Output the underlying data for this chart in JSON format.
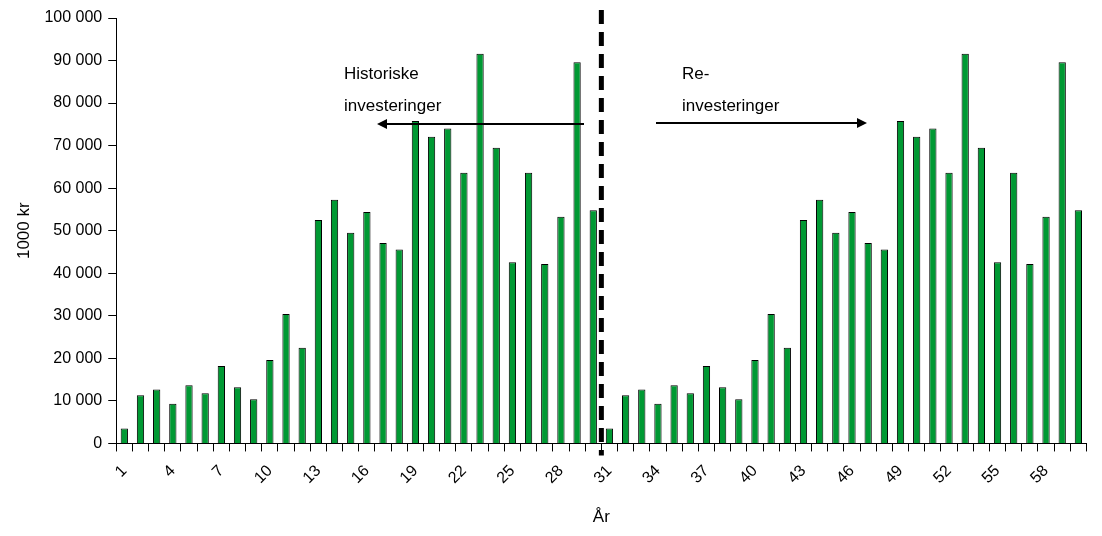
{
  "chart_data": {
    "type": "bar",
    "ylabel": "1000 kr",
    "xlabel": "År",
    "categories": [
      "1",
      null,
      null,
      "4",
      null,
      null,
      "7",
      null,
      null,
      "10",
      null,
      null,
      "13",
      null,
      null,
      "16",
      null,
      null,
      "19",
      null,
      null,
      "22",
      null,
      null,
      "25",
      null,
      null,
      "28",
      null,
      null,
      "31",
      null,
      null,
      "34",
      null,
      null,
      "37",
      null,
      null,
      "40",
      null,
      null,
      "43",
      null,
      null,
      "46",
      null,
      null,
      "49",
      null,
      null,
      "52",
      null,
      null,
      "55",
      null,
      null,
      "58",
      null,
      null
    ],
    "values": [
      3500,
      11300,
      12700,
      9300,
      13700,
      11800,
      18200,
      13200,
      10400,
      19600,
      30400,
      22500,
      52500,
      57300,
      49500,
      54400,
      47100,
      45600,
      75800,
      72100,
      74000,
      63600,
      91600,
      69500,
      42600,
      63600,
      42200,
      53300,
      89600,
      54800,
      3500,
      11300,
      12700,
      9300,
      13700,
      11800,
      18200,
      13200,
      10400,
      19600,
      30400,
      22500,
      52500,
      57300,
      49500,
      54400,
      47100,
      45600,
      75800,
      72100,
      74000,
      63600,
      91600,
      69500,
      42600,
      63600,
      42200,
      53300,
      89600,
      54800
    ],
    "color": "#009933",
    "ylim": [
      0,
      100000
    ],
    "yticks": [
      {
        "value": 0,
        "label": "0"
      },
      {
        "value": 10000,
        "label": "10 000"
      },
      {
        "value": 20000,
        "label": "20 000"
      },
      {
        "value": 30000,
        "label": "30 000"
      },
      {
        "value": 40000,
        "label": "40 000"
      },
      {
        "value": 50000,
        "label": "50 000"
      },
      {
        "value": 60000,
        "label": "60 000"
      },
      {
        "value": 70000,
        "label": "70 000"
      },
      {
        "value": 80000,
        "label": "80 000"
      },
      {
        "value": 90000,
        "label": "90 000"
      },
      {
        "value": 100000,
        "label": "100 000"
      }
    ],
    "ref_lines": [
      {
        "axis": "x",
        "value": "31",
        "color": "#000000",
        "line_style": "dashed"
      }
    ],
    "annotations": [
      "Historiske\ninvesteringer",
      "Re-\ninvesteringer"
    ],
    "grid": false,
    "legend": false
  }
}
